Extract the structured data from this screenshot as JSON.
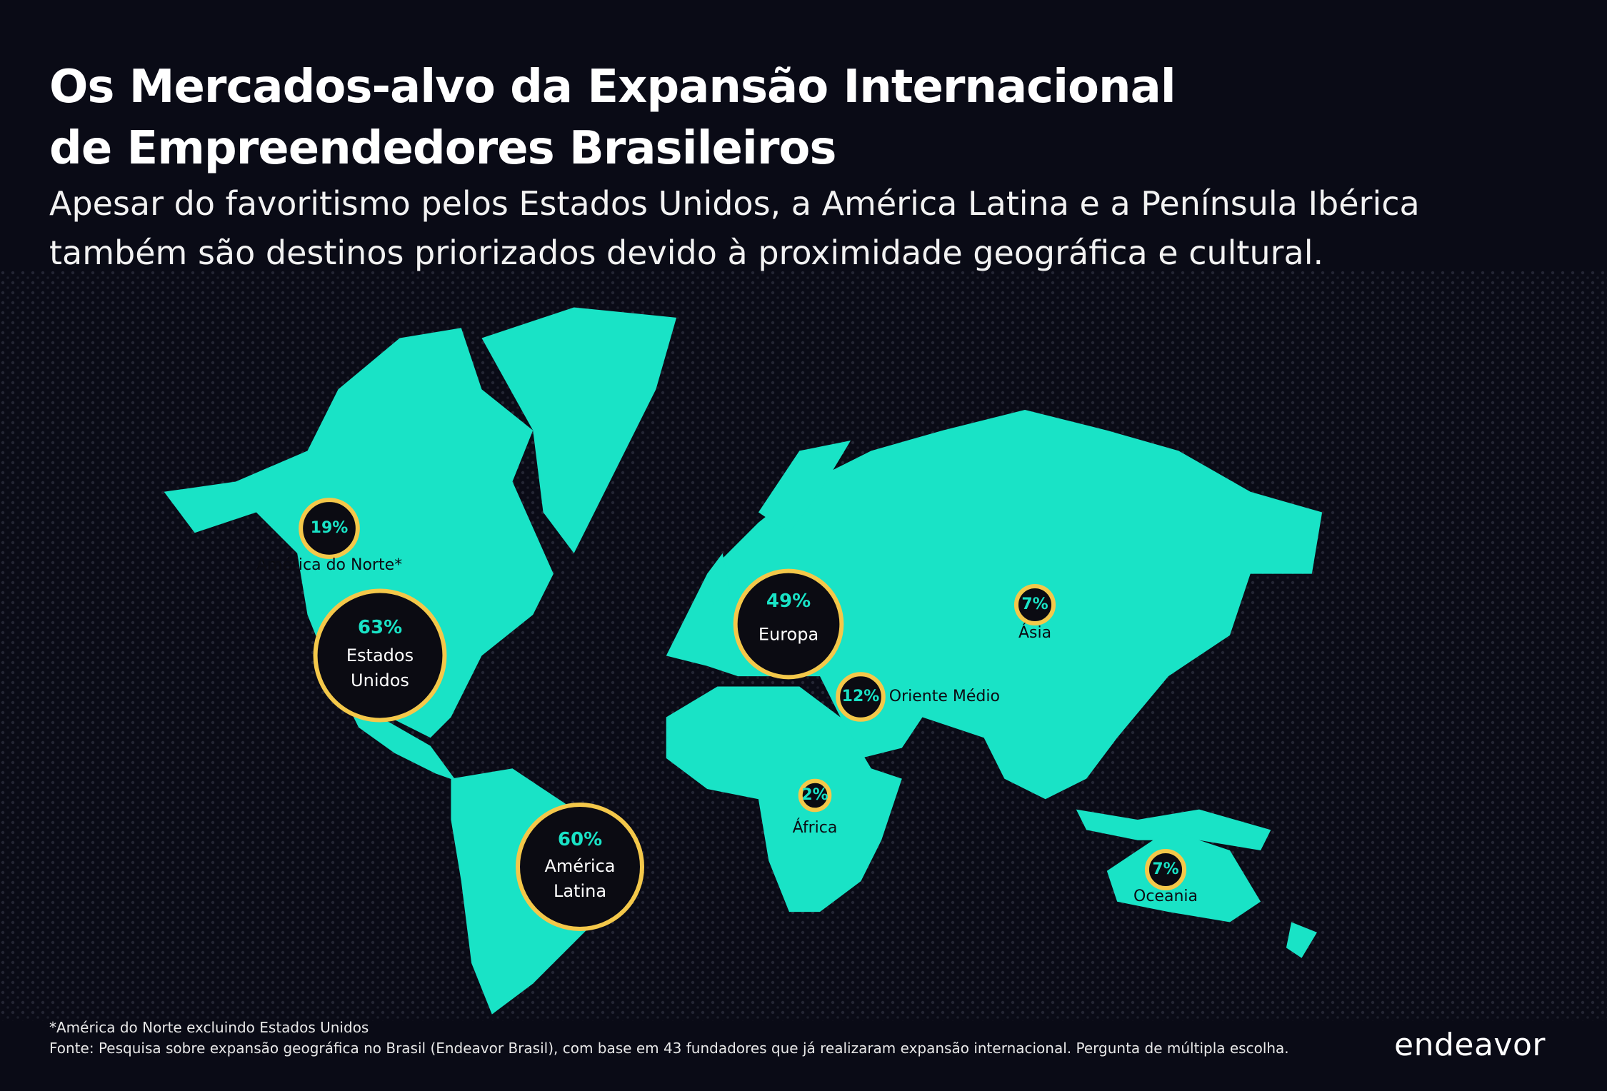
{
  "header": {
    "title_line1": "Os Mercados-alvo da Expansão Internacional",
    "title_line2": "de Empreendedores Brasileiros",
    "subtitle_line1": "Apesar do favoritismo pelos Estados Unidos, a América Latina e a Península Ibérica",
    "subtitle_line2": "também são destinos priorizados devido à proximidade geográfica e cultural."
  },
  "chart_data": {
    "type": "bubble",
    "categories": [
      "América do Norte*",
      "Estados Unidos",
      "América Latina",
      "Europa",
      "Oriente Médio",
      "África",
      "Ásia",
      "Oceania"
    ],
    "values": [
      19,
      63,
      60,
      49,
      12,
      2,
      7,
      7
    ],
    "value_labels": [
      "19%",
      "63%",
      "60%",
      "49%",
      "12%",
      "2%",
      "7%",
      "7%"
    ],
    "color": "#19e3c6"
  },
  "footnote": "*América do Norte excluindo Estados Unidos",
  "source": "Fonte: Pesquisa sobre expansão geográfica no Brasil (Endeavor Brasil), com base em 43 fundadores que já realizaram expansão internacional. Pergunta de múltipla escolha.",
  "logo": "endeavor"
}
